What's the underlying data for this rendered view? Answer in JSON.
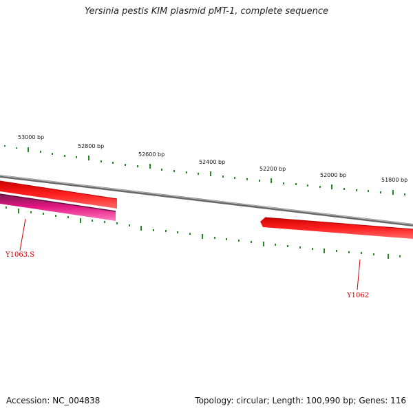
{
  "title": "Yersinia pestis KIM plasmid pMT-1, complete sequence",
  "footer": {
    "accession": "Accession: NC_004838",
    "summary": "Topology: circular; Length: 100,990 bp; Genes: 116"
  },
  "ticks": [
    {
      "label": "53000 bp"
    },
    {
      "label": "52800 bp"
    },
    {
      "label": "52600 bp"
    },
    {
      "label": "52400 bp"
    },
    {
      "label": "52200 bp"
    },
    {
      "label": "52000 bp"
    },
    {
      "label": "51800 bp"
    }
  ],
  "genes": [
    {
      "label": "Y1063.S",
      "color": "#ff1493"
    },
    {
      "label": "Y1062",
      "color": "#ff0000"
    }
  ],
  "colors": {
    "backbone": "#888888",
    "tick": "#228b22",
    "gene_red": "#ff0000",
    "gene_pink": "#ff1493",
    "label_red": "#cc0000"
  }
}
